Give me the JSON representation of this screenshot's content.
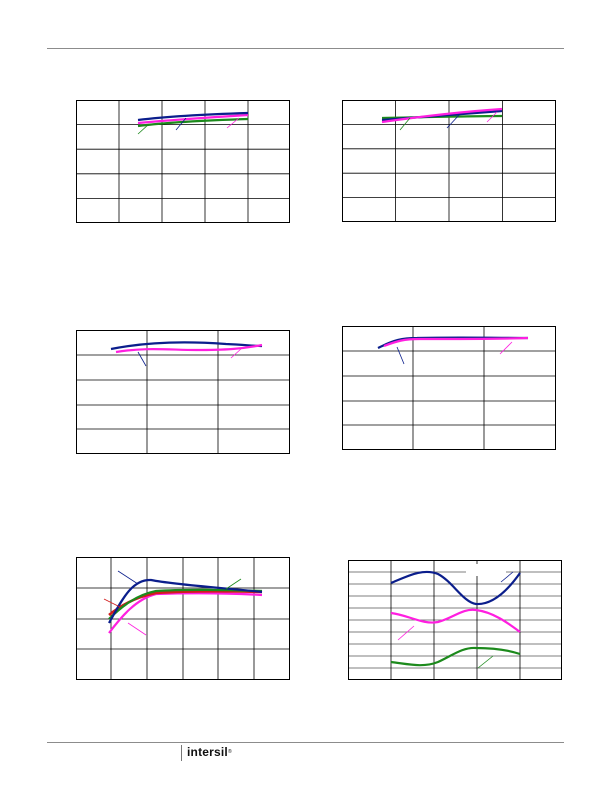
{
  "footer": {
    "logo_text": "intersil",
    "logo_mark": "®"
  },
  "colors": {
    "blue": "#0b1e8c",
    "magenta": "#ff1fe0",
    "green": "#1c8a1c",
    "red": "#d21c1c",
    "grid": "#000000"
  },
  "charts": [
    {
      "id": "graph-1",
      "series": [
        {
          "name": "",
          "color": "#0b1e8c",
          "points": [
            [
              0.3,
              0.17
            ],
            [
              0.5,
              0.13
            ],
            [
              0.75,
              0.12
            ],
            [
              0.93,
              0.11
            ]
          ]
        },
        {
          "name": "",
          "color": "#1c8a1c",
          "points": [
            [
              0.3,
              0.21
            ],
            [
              0.5,
              0.19
            ],
            [
              0.75,
              0.16
            ],
            [
              0.93,
              0.15
            ]
          ]
        },
        {
          "name": "",
          "color": "#ff1fe0",
          "points": [
            [
              0.3,
              0.19
            ],
            [
              0.5,
              0.17
            ],
            [
              0.75,
              0.14
            ],
            [
              0.93,
              0.12
            ]
          ]
        }
      ]
    },
    {
      "id": "graph-2",
      "series": [
        {
          "name": "",
          "color": "#1c8a1c",
          "points": [
            [
              0.2,
              0.17
            ],
            [
              0.4,
              0.16
            ],
            [
              0.6,
              0.16
            ],
            [
              0.74,
              0.16
            ]
          ]
        },
        {
          "name": "",
          "color": "#0b1e8c",
          "points": [
            [
              0.2,
              0.19
            ],
            [
              0.4,
              0.16
            ],
            [
              0.6,
              0.13
            ],
            [
              0.74,
              0.11
            ]
          ]
        },
        {
          "name": "",
          "color": "#ff1fe0",
          "points": [
            [
              0.2,
              0.21
            ],
            [
              0.4,
              0.15
            ],
            [
              0.6,
              0.1
            ],
            [
              0.74,
              0.07
            ]
          ]
        }
      ]
    },
    {
      "id": "graph-3",
      "series": [
        {
          "name": "",
          "color": "#0b1e8c",
          "points": [
            [
              0.15,
              0.3
            ],
            [
              0.35,
              0.14
            ],
            [
              0.55,
              0.12
            ],
            [
              0.8,
              0.16
            ],
            [
              0.9,
              0.18
            ]
          ]
        },
        {
          "name": "",
          "color": "#ff1fe0",
          "points": [
            [
              0.2,
              0.4
            ],
            [
              0.4,
              0.26
            ],
            [
              0.6,
              0.34
            ],
            [
              0.8,
              0.3
            ],
            [
              0.9,
              0.24
            ]
          ]
        }
      ]
    },
    {
      "id": "graph-4",
      "series": [
        {
          "name": "",
          "color": "#0b1e8c",
          "points": [
            [
              0.15,
              0.25
            ],
            [
              0.3,
              0.08
            ],
            [
              0.55,
              0.04
            ],
            [
              0.75,
              0.05
            ],
            [
              0.9,
              0.05
            ]
          ]
        },
        {
          "name": "",
          "color": "#ff1fe0",
          "points": [
            [
              0.2,
              0.2
            ],
            [
              0.3,
              0.09
            ],
            [
              0.55,
              0.06
            ],
            [
              0.75,
              0.05
            ],
            [
              0.9,
              0.05
            ]
          ]
        }
      ]
    },
    {
      "id": "graph-5",
      "series": [
        {
          "name": "",
          "color": "#0b1e8c",
          "points": [
            [
              0.16,
              0.53
            ],
            [
              0.27,
              0.28
            ],
            [
              0.36,
              0.14
            ],
            [
              0.5,
              0.19
            ],
            [
              0.7,
              0.24
            ],
            [
              0.9,
              0.28
            ]
          ]
        },
        {
          "name": "",
          "color": "#1c8a1c",
          "points": [
            [
              0.16,
              0.5
            ],
            [
              0.25,
              0.38
            ],
            [
              0.35,
              0.29
            ],
            [
              0.5,
              0.25
            ],
            [
              0.7,
              0.25
            ],
            [
              0.9,
              0.27
            ]
          ]
        },
        {
          "name": "",
          "color": "#d21c1c",
          "points": [
            [
              0.16,
              0.47
            ],
            [
              0.25,
              0.37
            ],
            [
              0.35,
              0.3
            ],
            [
              0.5,
              0.27
            ],
            [
              0.7,
              0.27
            ],
            [
              0.9,
              0.28
            ]
          ]
        },
        {
          "name": "",
          "color": "#ff1fe0",
          "points": [
            [
              0.16,
              0.62
            ],
            [
              0.27,
              0.45
            ],
            [
              0.4,
              0.32
            ],
            [
              0.5,
              0.29
            ],
            [
              0.7,
              0.29
            ],
            [
              0.9,
              0.32
            ]
          ]
        }
      ]
    },
    {
      "id": "graph-6",
      "series": [
        {
          "name": "",
          "color": "#0b1e8c",
          "points": [
            [
              0.22,
              0.19
            ],
            [
              0.38,
              0.1
            ],
            [
              0.52,
              0.27
            ],
            [
              0.62,
              0.38
            ],
            [
              0.76,
              0.28
            ],
            [
              0.86,
              0.1
            ]
          ]
        },
        {
          "name": "",
          "color": "#ff1fe0",
          "points": [
            [
              0.22,
              0.44
            ],
            [
              0.36,
              0.51
            ],
            [
              0.5,
              0.47
            ],
            [
              0.64,
              0.43
            ],
            [
              0.76,
              0.5
            ],
            [
              0.86,
              0.6
            ]
          ]
        },
        {
          "name": "",
          "color": "#1c8a1c",
          "points": [
            [
              0.22,
              0.83
            ],
            [
              0.36,
              0.86
            ],
            [
              0.5,
              0.8
            ],
            [
              0.64,
              0.73
            ],
            [
              0.76,
              0.75
            ],
            [
              0.86,
              0.78
            ]
          ]
        }
      ]
    }
  ]
}
